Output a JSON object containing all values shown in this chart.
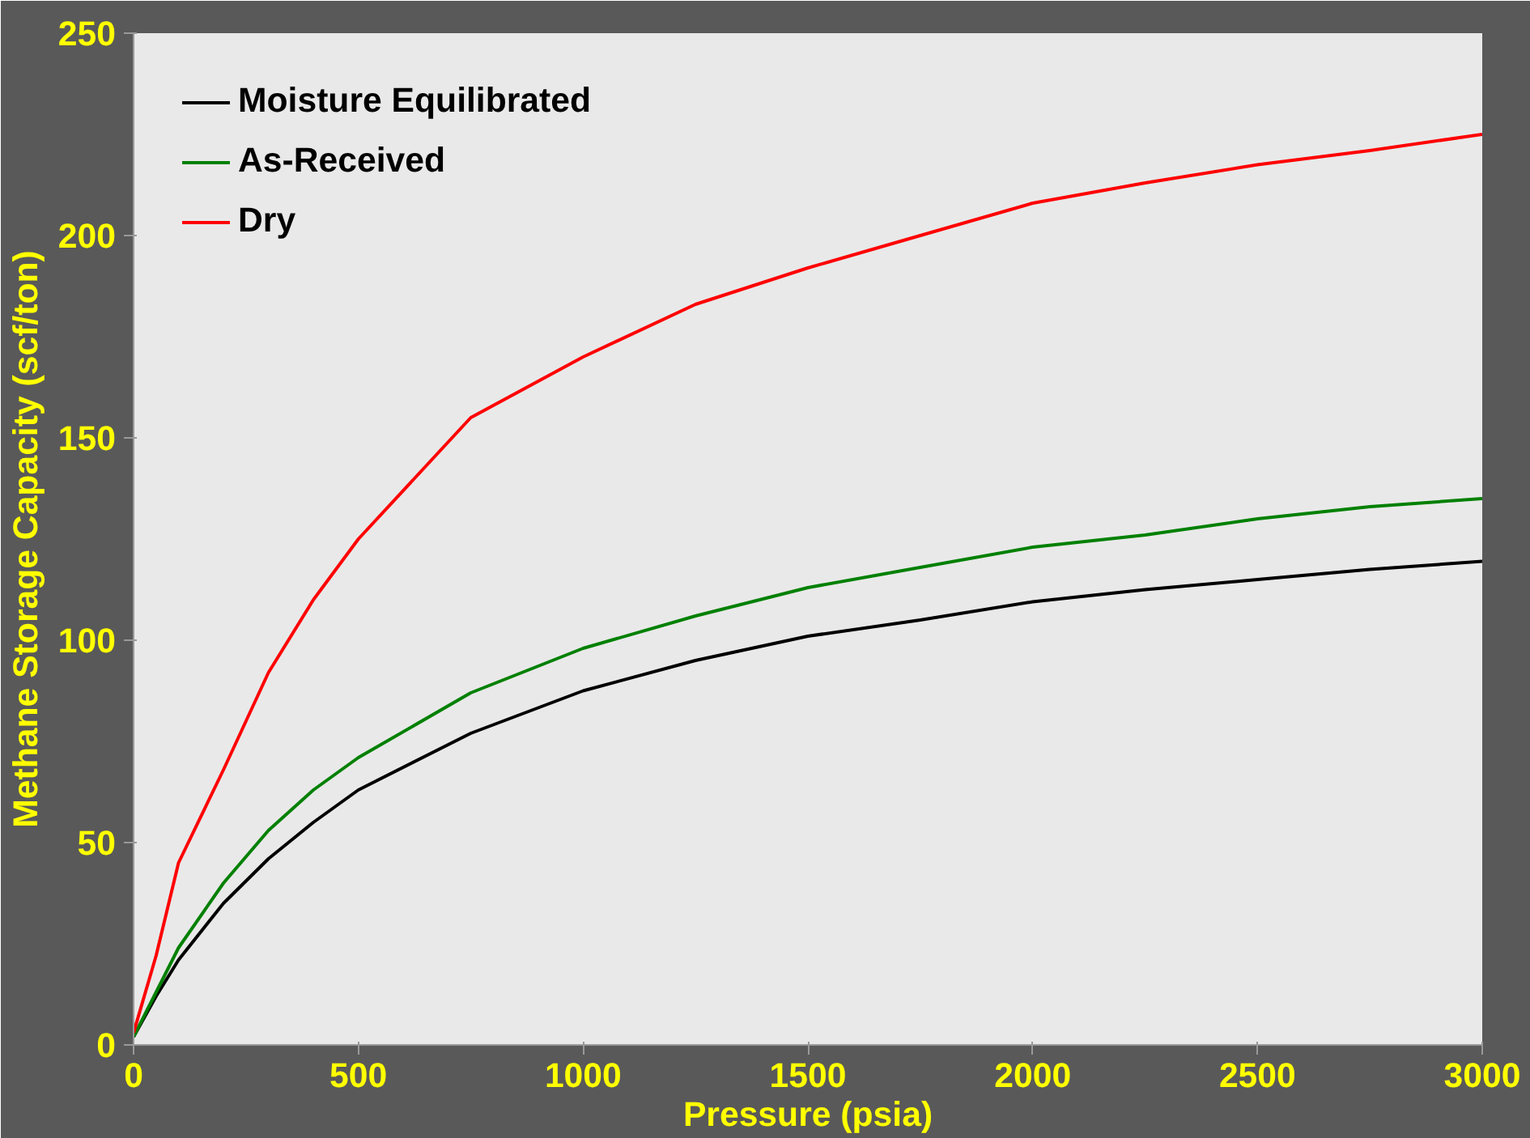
{
  "chart_data": {
    "type": "line",
    "xlabel": "Pressure (psia)",
    "ylabel": "Methane Storage Capacity (scf/ton)",
    "xlim": [
      0,
      3000
    ],
    "xticks": [
      0,
      500,
      1000,
      1500,
      2000,
      2500,
      3000
    ],
    "ylim": [
      0,
      250
    ],
    "yticks": [
      0,
      50,
      100,
      150,
      200,
      250
    ],
    "legend": "top left",
    "marker": "none",
    "line_style": "solid",
    "x": [
      0,
      50,
      100,
      200,
      300,
      400,
      500,
      750,
      1000,
      1250,
      1500,
      1750,
      2000,
      2250,
      2500,
      2750,
      3000
    ],
    "series": [
      {
        "name": "Moisture Equilibrated",
        "color": "#000000",
        "values": [
          2,
          12,
          21,
          35,
          46,
          55,
          63,
          77,
          87.5,
          95,
          101,
          105,
          109.5,
          112.5,
          115,
          117.5,
          119.5
        ]
      },
      {
        "name": "As-Received",
        "color": "#008000",
        "values": [
          2,
          13,
          24,
          40,
          53,
          63,
          71,
          87,
          98,
          106,
          113,
          118,
          123,
          126,
          130,
          133,
          135
        ]
      },
      {
        "name": "Dry",
        "color": "#ff0000",
        "values": [
          3,
          22,
          45,
          68,
          92,
          110,
          125,
          155,
          170,
          183,
          192,
          200,
          208,
          213,
          217.5,
          221,
          225
        ]
      }
    ]
  }
}
